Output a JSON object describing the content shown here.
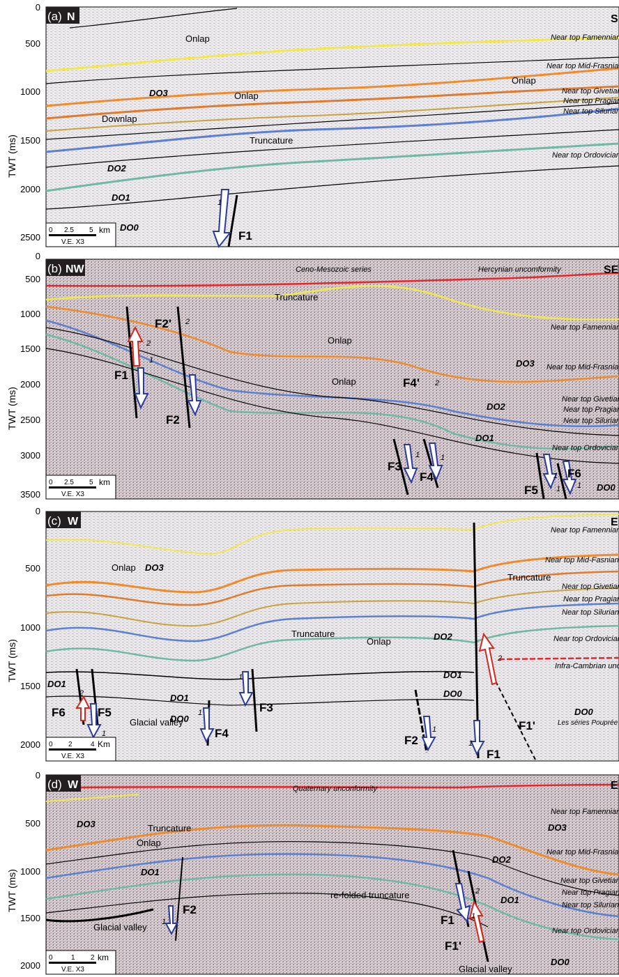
{
  "y_axis_label": "TWT (ms)",
  "colors": {
    "famennian": "#f2e84a",
    "mid_frasnian": "#f08a2a",
    "givetian": "#e07a2c",
    "pragian": "#c9a23a",
    "silurian": "#5b7fd1",
    "ordovician": "#6fb8a6",
    "unconformity": "#e8262a",
    "normal_arrow": "#2b3a9e",
    "reverse_arrow": "#d9261c"
  },
  "panels": [
    {
      "letter": "(a)",
      "left_dir": "N",
      "right_dir": "S",
      "ticks": [
        "0",
        "500",
        "1000",
        "1500",
        "2000",
        "2500"
      ],
      "horizons": [
        "Near top Famennian",
        "Near top Mid-Frasnian",
        "Near top Givetian",
        "Near top Pragian",
        "Near top Silurian",
        "Near top Ordovician"
      ],
      "labels": [
        "Onlap",
        "Onlap",
        "Onlap",
        "Downlap",
        "Truncature"
      ],
      "sequences": [
        "DO3",
        "DO2",
        "DO1",
        "DO0"
      ],
      "faults": [
        "F1"
      ],
      "fault_nums": [
        "1"
      ],
      "scale": {
        "t0": "0",
        "t1": "2.5",
        "t2": "5",
        "unit": "km",
        "ve": "V.E. X3"
      }
    },
    {
      "letter": "(b)",
      "left_dir": "NW",
      "right_dir": "SE",
      "ticks": [
        "0",
        "500",
        "1000",
        "1500",
        "2000",
        "2500",
        "3000",
        "3500"
      ],
      "top_labels": [
        "Ceno-Mesozoic series",
        "Hercynian uncomformity"
      ],
      "horizons": [
        "Near top Famennian",
        "Near top Mid-Frasnian",
        "Near top Givetian",
        "Near top Pragian",
        "Near top Silurian",
        "Near top Ordovician"
      ],
      "labels": [
        "Truncature",
        "Onlap",
        "Onlap"
      ],
      "sequences": [
        "DO3",
        "DO2",
        "DO1",
        "DO0"
      ],
      "faults": [
        "F1",
        "F2",
        "F2'",
        "F3",
        "F4",
        "F4'",
        "F5",
        "F6"
      ],
      "fault_nums": [
        "1",
        "2",
        "1",
        "2",
        "1",
        "2",
        "1",
        "1",
        "1"
      ],
      "scale": {
        "t0": "0",
        "t1": "2.5",
        "t2": "5",
        "unit": "km",
        "ve": "V.E. X3"
      }
    },
    {
      "letter": "(c)",
      "left_dir": "W",
      "right_dir": "E",
      "ticks": [
        "0",
        "500",
        "1000",
        "1500",
        "2000"
      ],
      "horizons": [
        "Near top Famennian",
        "Near top Mid-Fasnian",
        "Near top Givetian",
        "Near top Pragian",
        "Near top Silurian",
        "Near top Ordovician",
        "Infra-Cambrian unc"
      ],
      "labels": [
        "Onlap",
        "Truncature",
        "Truncature",
        "Onlap",
        "Glacial valley"
      ],
      "sequences": [
        "DO3",
        "DO2",
        "DO1",
        "DO0",
        "DO1",
        "DO1",
        "DO0",
        "DO0"
      ],
      "faults": [
        "F6",
        "F5",
        "F4",
        "F3",
        "F2",
        "F1",
        "F1'"
      ],
      "fault_nums": [
        "2",
        "1",
        "1",
        "1",
        "1",
        "1",
        "2"
      ],
      "extra_label": "Les séries Pouprée Molasses ?",
      "scale": {
        "t0": "0",
        "t1": "2",
        "t2": "4",
        "unit": "Km",
        "ve": "V.E. X3"
      }
    },
    {
      "letter": "(d)",
      "left_dir": "W",
      "right_dir": "E",
      "ticks": [
        "0",
        "500",
        "1000",
        "1500",
        "2000"
      ],
      "top_labels": [
        "Quaternary unconformity"
      ],
      "horizons": [
        "Near top Famennian",
        "Near top Mid-Frasnian",
        "Near top Givetian",
        "Near top Pragian",
        "Near top Silurian",
        "Near top Ordovician"
      ],
      "labels": [
        "Truncature",
        "Onlap",
        "Glacial valley",
        "re-folded truncature",
        "Glacial valley"
      ],
      "sequences": [
        "DO3",
        "DO3",
        "DO2",
        "DO1",
        "DO1",
        "DO0"
      ],
      "faults": [
        "F2",
        "F1",
        "F1'"
      ],
      "fault_nums": [
        "1",
        "1",
        "2"
      ],
      "scale": {
        "t0": "0",
        "t1": "1",
        "t2": "2",
        "unit": "km",
        "ve": "V.E. X3"
      }
    }
  ]
}
